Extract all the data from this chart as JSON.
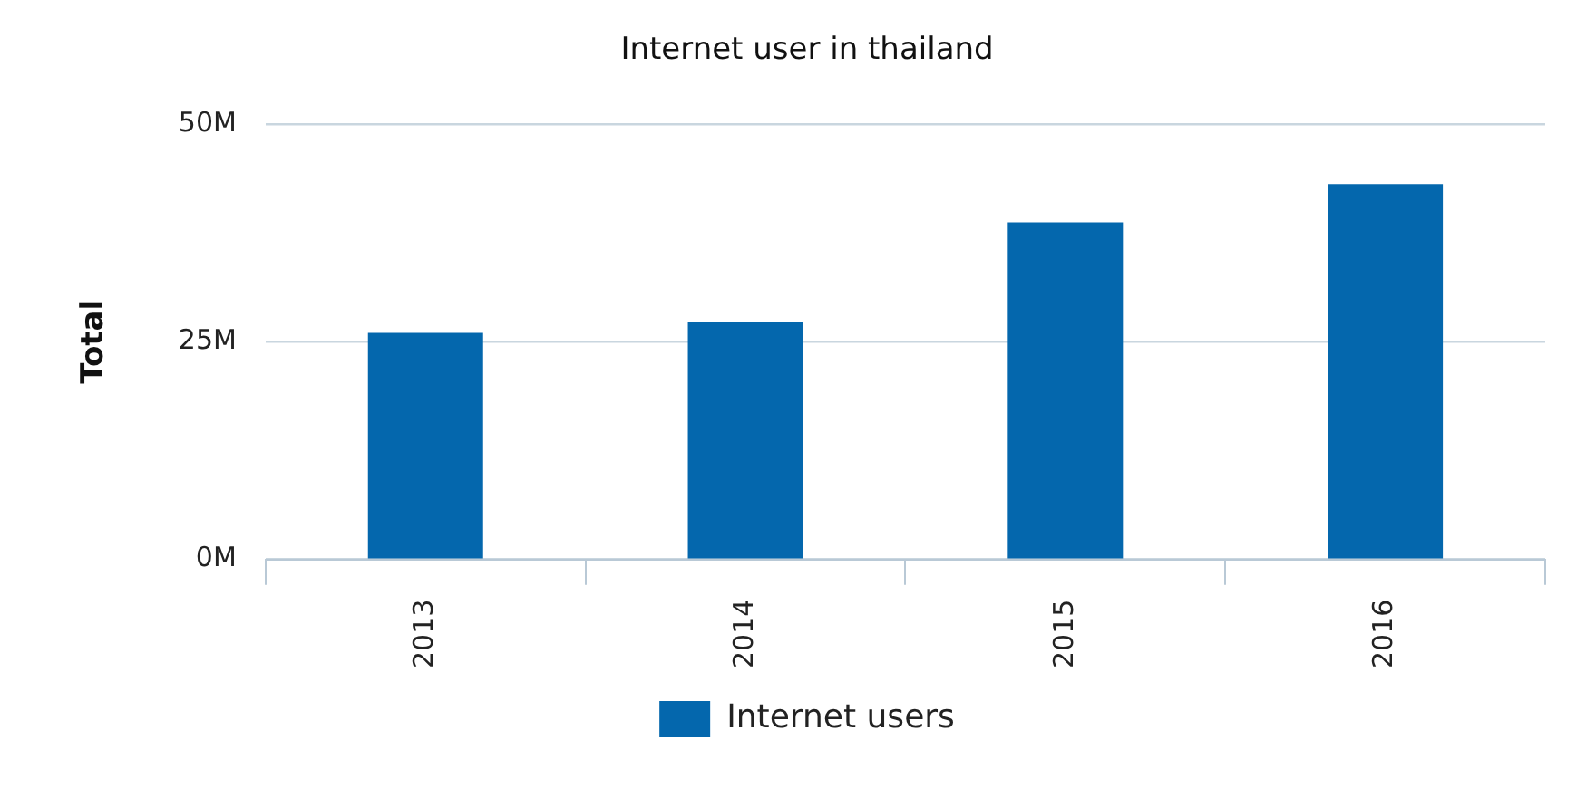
{
  "chart_data": {
    "type": "bar",
    "title": "Internet user in thailand",
    "ylabel": "Total",
    "categories": [
      "2013",
      "2014",
      "2015",
      "2016"
    ],
    "series": [
      {
        "name": "Internet users",
        "color": "#0467ad",
        "values": [
          26.0,
          27.2,
          38.7,
          43.1
        ]
      }
    ],
    "ylim": [
      0,
      50
    ],
    "yticks": [
      {
        "value": 0,
        "label": "0M"
      },
      {
        "value": 25,
        "label": "25M"
      },
      {
        "value": 50,
        "label": "50M"
      }
    ],
    "grid": "y",
    "legend": "bottom"
  }
}
